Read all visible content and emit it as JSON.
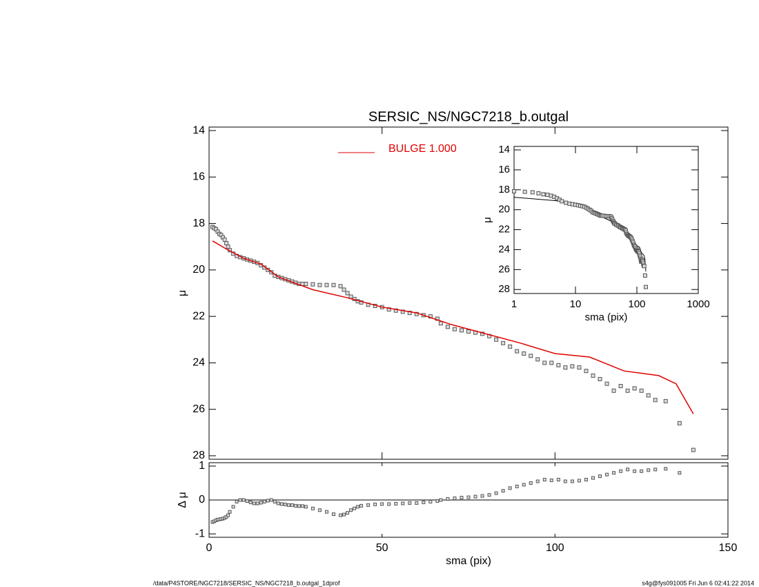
{
  "chart_data": [
    {
      "type": "scatter",
      "title": "SERSIC_NS/NGC7218_b.outgal",
      "y_label": "μ",
      "xlim": [
        0,
        150
      ],
      "ylim": [
        28.15,
        13.85
      ],
      "xticks": [
        0,
        50,
        100,
        150
      ],
      "yticks": [
        14,
        16,
        18,
        20,
        22,
        24,
        26,
        28
      ],
      "marker_color": "#555555",
      "x": [
        1,
        1.5,
        2,
        2.5,
        3,
        3.5,
        4,
        4.5,
        5,
        5.5,
        6,
        7,
        8,
        9,
        10,
        11,
        12,
        13,
        14,
        15,
        16,
        17,
        18,
        19,
        20,
        21,
        22,
        23,
        24,
        25,
        26,
        27,
        28,
        30,
        32,
        34,
        36,
        38,
        39,
        40,
        41,
        42,
        43,
        44,
        46,
        48,
        50,
        52,
        54,
        56,
        58,
        60,
        62,
        64,
        66,
        67,
        69,
        71,
        73,
        75,
        77,
        79,
        81,
        83,
        85,
        87,
        89,
        91,
        93,
        95,
        97,
        99,
        101,
        103,
        105,
        107,
        109,
        111,
        113,
        115,
        117,
        119,
        121,
        123,
        125,
        127,
        129,
        132,
        136,
        140
      ],
      "values": [
        18.15,
        18.2,
        18.25,
        18.35,
        18.45,
        18.5,
        18.6,
        18.7,
        18.85,
        19.0,
        19.15,
        19.3,
        19.4,
        19.45,
        19.5,
        19.55,
        19.6,
        19.65,
        19.7,
        19.8,
        19.9,
        20.0,
        20.1,
        20.25,
        20.3,
        20.35,
        20.4,
        20.45,
        20.5,
        20.55,
        20.6,
        20.6,
        20.6,
        20.62,
        20.65,
        20.65,
        20.65,
        20.7,
        20.85,
        21.0,
        21.15,
        21.25,
        21.35,
        21.4,
        21.5,
        21.55,
        21.6,
        21.7,
        21.75,
        21.8,
        21.85,
        21.9,
        21.95,
        22.0,
        22.1,
        22.3,
        22.45,
        22.55,
        22.6,
        22.65,
        22.7,
        22.75,
        22.85,
        23.0,
        23.15,
        23.3,
        23.5,
        23.6,
        23.7,
        23.85,
        24.0,
        24.0,
        24.1,
        24.2,
        24.15,
        24.2,
        24.35,
        24.55,
        24.7,
        24.9,
        25.2,
        25.0,
        25.2,
        25.1,
        25.2,
        25.4,
        25.6,
        25.65,
        26.6,
        27.75
      ],
      "model": {
        "name": "BULGE  1.000",
        "color": "#e00000",
        "x": [
          1,
          5,
          10,
          15,
          20,
          30,
          40,
          50,
          60,
          70,
          80,
          90,
          100,
          110,
          115,
          120,
          125,
          130,
          135,
          140
        ],
        "values": [
          18.75,
          19.1,
          19.5,
          19.75,
          20.3,
          20.85,
          21.2,
          21.6,
          21.85,
          22.35,
          22.75,
          23.15,
          23.6,
          23.75,
          24.05,
          24.35,
          24.45,
          24.55,
          24.9,
          26.2
        ]
      },
      "legend": "top"
    },
    {
      "type": "residual",
      "y_label": "Δ μ",
      "x_label": "sma (pix)",
      "xlim": [
        0,
        150
      ],
      "ylim": [
        -1.1,
        1.1
      ],
      "xticks": [
        0,
        50,
        100,
        150
      ],
      "yticks": [
        -1,
        0,
        1
      ],
      "zero_line": true,
      "values": [
        -0.65,
        -0.63,
        -0.6,
        -0.58,
        -0.57,
        -0.56,
        -0.55,
        -0.53,
        -0.5,
        -0.45,
        -0.35,
        -0.2,
        -0.05,
        0,
        0,
        -0.03,
        -0.07,
        -0.1,
        -0.1,
        -0.08,
        -0.05,
        -0.02,
        0,
        -0.05,
        -0.1,
        -0.12,
        -0.13,
        -0.15,
        -0.15,
        -0.17,
        -0.18,
        -0.18,
        -0.2,
        -0.25,
        -0.3,
        -0.35,
        -0.42,
        -0.45,
        -0.43,
        -0.38,
        -0.3,
        -0.25,
        -0.2,
        -0.17,
        -0.15,
        -0.13,
        -0.12,
        -0.12,
        -0.11,
        -0.1,
        -0.09,
        -0.09,
        -0.07,
        -0.05,
        -0.03,
        0,
        0.03,
        0.05,
        0.07,
        0.08,
        0.1,
        0.12,
        0.15,
        0.2,
        0.27,
        0.35,
        0.4,
        0.45,
        0.5,
        0.55,
        0.6,
        0.58,
        0.6,
        0.55,
        0.55,
        0.57,
        0.6,
        0.65,
        0.7,
        0.75,
        0.8,
        0.85,
        0.9,
        0.85,
        0.85,
        0.88,
        0.9,
        0.92,
        0.8,
        null
      ]
    },
    {
      "type": "inset",
      "y_label": "μ",
      "x_label": "sma (pix)",
      "log_x": true,
      "xlim": [
        1,
        1000
      ],
      "ylim": [
        28.4,
        13.65
      ],
      "xticks": [
        1,
        10,
        100,
        1000
      ],
      "yticks": [
        14,
        16,
        18,
        20,
        22,
        24,
        26,
        28
      ],
      "model_color": "#000000"
    }
  ],
  "footer": {
    "left": "/data/P4STORE/NGC7218/SERSIC_NS/NGC7218_b.outgal_1dprof",
    "right": "s4g@fys091005  Fri Jun  6 02:41:22 2014"
  }
}
